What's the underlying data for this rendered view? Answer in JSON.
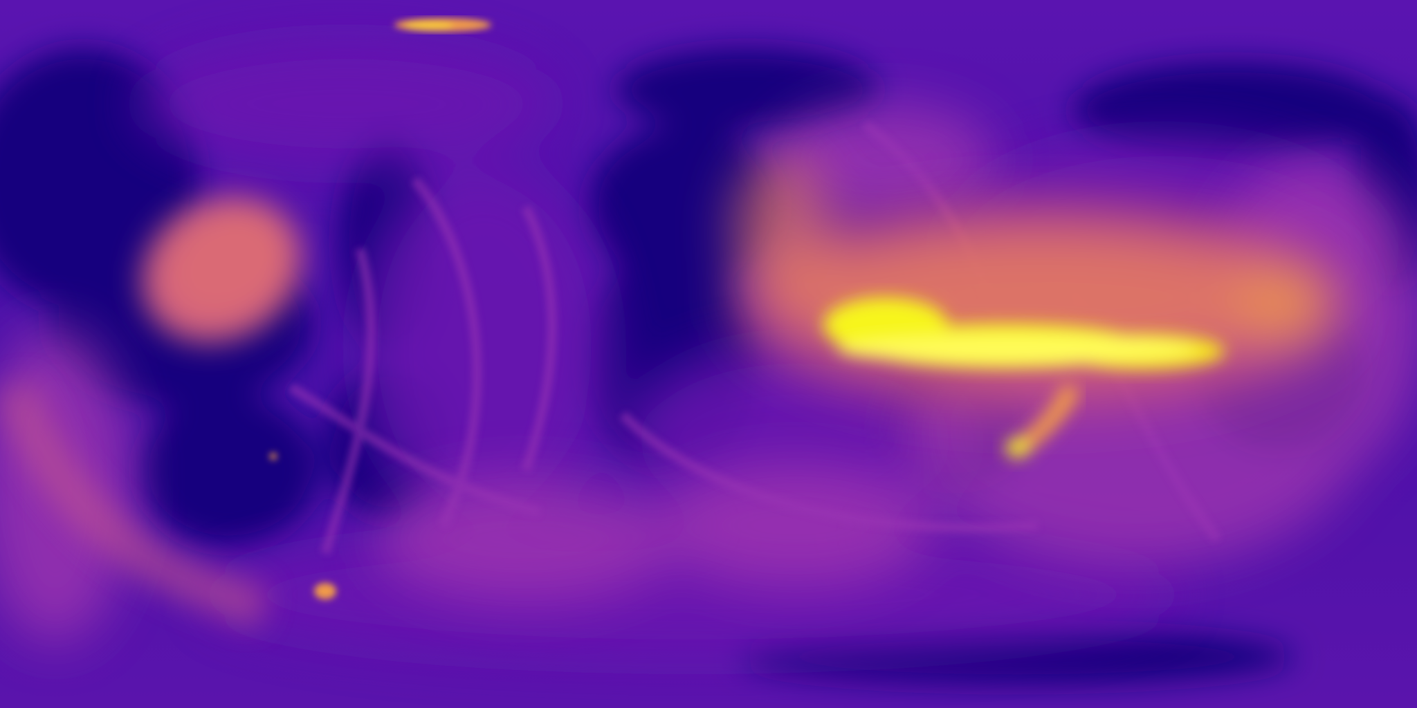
{
  "image": {
    "kind": "equirectangular heat map",
    "colors": {
      "background": "#4a10a8",
      "deep": "#15007e",
      "violet": "#6a16b0",
      "magenta": "#a83ab0",
      "rose": "#d3627e",
      "orange": "#f09a48",
      "yellow": "#f7f51e"
    }
  }
}
